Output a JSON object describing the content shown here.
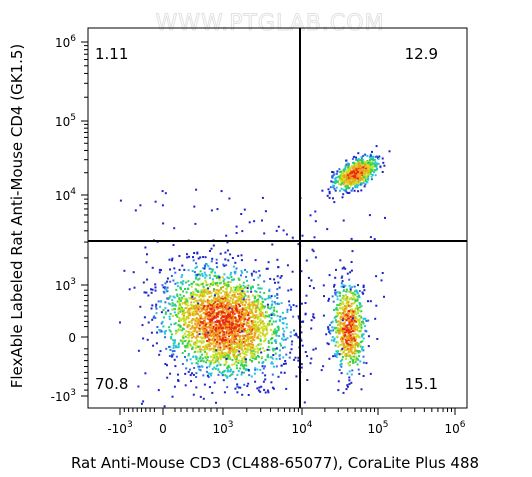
{
  "chart_data": {
    "type": "scatter",
    "plot_style": "flow cytometry pseudocolor density plot (biexponential axes)",
    "watermark": "WWW.PTGLAB.COM",
    "xlabel": "Rat Anti-Mouse CD3 (CL488-65077), CoraLite Plus 488",
    "ylabel": "FlexAble Labeled Rat Anti-Mouse CD4 (GK1.5)",
    "x_ticks": [
      {
        "base": "-10",
        "exp": "3"
      },
      {
        "base": "0",
        "exp": ""
      },
      {
        "base": "10",
        "exp": "3"
      },
      {
        "base": "10",
        "exp": "4"
      },
      {
        "base": "10",
        "exp": "5"
      },
      {
        "base": "10",
        "exp": "6"
      }
    ],
    "y_ticks": [
      {
        "base": "-10",
        "exp": "3"
      },
      {
        "base": "0",
        "exp": ""
      },
      {
        "base": "10",
        "exp": "3"
      },
      {
        "base": "10",
        "exp": "4"
      },
      {
        "base": "10",
        "exp": "5"
      },
      {
        "base": "10",
        "exp": "6"
      }
    ],
    "x_range": [
      "-10^3",
      "10^6"
    ],
    "y_range": [
      "-10^3",
      "10^6"
    ],
    "gate_crosshair": {
      "x": 8000,
      "y": 2500
    },
    "quadrants": [
      {
        "position": "top-left",
        "label": "1.11"
      },
      {
        "position": "top-right",
        "label": "12.9"
      },
      {
        "position": "bottom-left",
        "label": "70.8"
      },
      {
        "position": "bottom-right",
        "label": "15.1"
      }
    ],
    "populations": [
      {
        "quadrant": "bottom-left",
        "x_center": 1000,
        "y_center": 300,
        "density": "highest"
      },
      {
        "quadrant": "top-right",
        "x_center": 50000,
        "y_center": 20000,
        "density": "high"
      },
      {
        "quadrant": "bottom-right",
        "x_center": 40000,
        "y_center": 200,
        "density": "medium"
      }
    ],
    "colormap": [
      "#1e22c8",
      "#2f6be8",
      "#27c4e0",
      "#34d050",
      "#c8e020",
      "#f0a020",
      "#e82a10"
    ],
    "grid": false,
    "legend": "none"
  }
}
